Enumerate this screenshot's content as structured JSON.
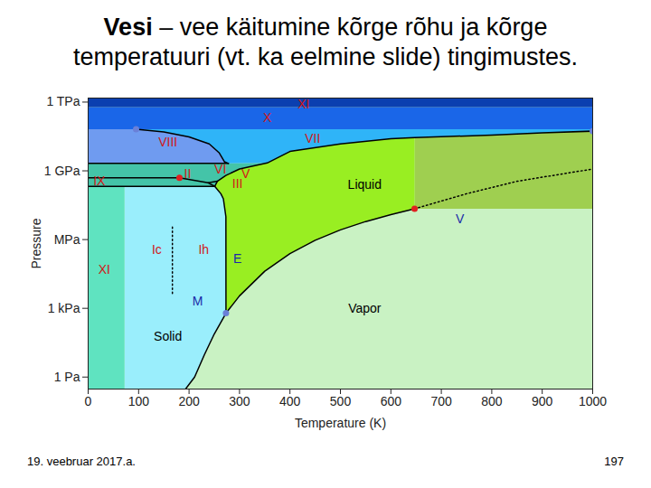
{
  "slide": {
    "title_bold": "Vesi",
    "title_lines": [
      "– vee käitumine kõrge rõhu ja kõrge",
      "temperatuuri (vt. ka eelmine slide) tingimustes."
    ],
    "date": "19. veebruar 2017.a.",
    "page": 197
  },
  "chart_data": {
    "type": "line",
    "x_label": "Temperature (K)",
    "y_label": "Pressure",
    "log": "y",
    "grid": false,
    "xlim": [
      0,
      1000
    ],
    "ylim": [
      0.3,
      1500000000000
    ],
    "xticks": [
      0,
      100,
      200,
      300,
      400,
      500,
      600,
      700,
      800,
      900,
      1000
    ],
    "yticks": [
      {
        "value": 1,
        "label": "1 Pa"
      },
      {
        "value": 1000,
        "label": "1 kPa"
      },
      {
        "value": 1000000,
        "label": "MPa"
      },
      {
        "value": 1000000000,
        "label": "1 GPa"
      },
      {
        "value": 1000000000000,
        "label": "1 TPa"
      }
    ],
    "regions": [
      {
        "color": "#c9f2c3",
        "x": [
          0,
          1000,
          1000,
          0
        ],
        "values": [
          0.3,
          0.3,
          1500000000000,
          1500000000000
        ]
      },
      {
        "color": "#9fcf50",
        "x": [
          647,
          1000,
          1000,
          900,
          800,
          700,
          647
        ],
        "values": [
          22060000,
          22060000,
          54000000000,
          45000000000,
          36000000000,
          31000000000,
          28000000000
        ]
      },
      {
        "color": "#99ee22",
        "x": [
          273.16,
          300,
          350,
          400,
          450,
          500,
          550,
          600,
          647,
          647,
          600,
          500,
          400,
          355,
          300,
          273,
          256,
          251,
          263,
          268,
          273,
          273.16
        ],
        "values": [
          611.7,
          3500,
          41700,
          245600,
          932000,
          2640000,
          6120000,
          12340000,
          22060000,
          28000000000,
          25000000000,
          15000000000,
          7000000000,
          2200000000,
          1200000000,
          630000000,
          350000000,
          210000000,
          100000000,
          60000000,
          10000000,
          611.7
        ]
      },
      {
        "color": "#9aeefc",
        "x": [
          72,
          193,
          211,
          230,
          250,
          273.16,
          273,
          268,
          263,
          251,
          72
        ],
        "values": [
          0.3,
          0.3,
          1,
          9,
          76,
          611.7,
          10000000,
          60000000,
          100000000,
          210000000,
          210000000
        ]
      },
      {
        "color": "#5fe3c0",
        "x": [
          0,
          72,
          72,
          0
        ],
        "values": [
          0.3,
          0.3,
          210000000,
          210000000
        ]
      },
      {
        "color": "#44c4a8",
        "x": [
          0,
          251,
          256,
          273,
          300,
          355,
          278,
          0
        ],
        "values": [
          210000000,
          210000000,
          350000000,
          630000000,
          1200000000,
          2200000000,
          2100000000,
          2100000000
        ]
      },
      {
        "color": "#6f9bf0",
        "x": [
          0,
          278,
          270,
          260,
          240,
          200,
          150,
          95,
          0
        ],
        "values": [
          2100000000,
          2100000000,
          2500000000,
          6000000000,
          15000000000,
          30000000000,
          50000000000,
          65000000000,
          65000000000
        ]
      },
      {
        "color": "#2fb4f8",
        "x": [
          278,
          355,
          400,
          500,
          600,
          647,
          700,
          800,
          900,
          1000,
          1000,
          95,
          150,
          200,
          240,
          260,
          270
        ],
        "values": [
          2100000000,
          2200000000,
          7000000000,
          15000000000,
          25000000000,
          28000000000,
          31000000000,
          36000000000,
          45000000000,
          54000000000,
          65000000000,
          65000000000,
          50000000000,
          30000000000,
          15000000000,
          6000000000,
          2500000000
        ]
      },
      {
        "color": "#1a66e8",
        "x": [
          0,
          1000,
          1000,
          0
        ],
        "values": [
          65000000000,
          65000000000,
          600000000000,
          600000000000
        ]
      },
      {
        "color": "#0b3fb0",
        "x": [
          0,
          1000,
          1000,
          0
        ],
        "values": [
          600000000000,
          600000000000,
          1500000000000,
          1500000000000
        ]
      }
    ],
    "series": [
      {
        "color": "#000000",
        "line_style": "solid",
        "x": [
          193,
          211,
          230,
          250,
          273.16
        ],
        "values": [
          0.3,
          1,
          9,
          76,
          611.7
        ]
      },
      {
        "color": "#000000",
        "line_style": "solid",
        "x": [
          273.16,
          300,
          350,
          400,
          450,
          500,
          550,
          600,
          647
        ],
        "values": [
          611.7,
          3500,
          41700,
          245600,
          932000,
          2640000,
          6120000,
          12340000,
          22060000
        ]
      },
      {
        "color": "#000000",
        "line_style": "solid",
        "x": [
          273.16,
          273,
          268,
          263,
          251,
          256,
          273,
          300,
          355,
          400,
          500,
          600,
          647,
          700,
          800,
          900,
          1000
        ],
        "values": [
          611.7,
          10000000,
          60000000,
          100000000,
          210000000,
          350000000,
          630000000,
          1200000000,
          2200000000,
          7000000000,
          15000000000,
          25000000000,
          28000000000,
          31000000000,
          36000000000,
          45000000000,
          54000000000
        ]
      },
      {
        "color": "#000000",
        "line_style": "solid",
        "x": [
          95,
          150,
          200,
          240,
          260,
          270,
          278
        ],
        "values": [
          65000000000,
          50000000000,
          30000000000,
          15000000000,
          6000000000,
          2500000000,
          2100000000
        ]
      },
      {
        "color": "#000000",
        "line_style": "solid",
        "x": [
          0,
          278
        ],
        "values": [
          2100000000,
          2100000000
        ]
      },
      {
        "color": "#000000",
        "line_style": "solid",
        "x": [
          0,
          251
        ],
        "values": [
          210000000,
          210000000
        ]
      },
      {
        "color": "#000000",
        "line_style": "solid",
        "x": [
          0,
          181,
          238,
          256
        ],
        "values": [
          500000000,
          500000000,
          300000000,
          350000000
        ]
      },
      {
        "color": "#000000",
        "line_style": "solid",
        "x": [
          238,
          251
        ],
        "values": [
          300000000,
          210000000
        ]
      },
      {
        "color": "#000000",
        "line_style": "dotted",
        "x": [
          647,
          750,
          850,
          1000
        ],
        "values": [
          22060000,
          100000000,
          350000000,
          1200000000
        ]
      },
      {
        "color": "#000000",
        "line_style": "dotted",
        "x": [
          167,
          167
        ],
        "values": [
          4400,
          4400000
        ]
      }
    ],
    "points": {
      "marker": "circle",
      "x": [
        647,
        181,
        273.16,
        95,
        1000
      ],
      "values": [
        22060000,
        500000000,
        611.7,
        65000000000,
        54000000000
      ],
      "colors": [
        "#e02020",
        "#e02020",
        "#6a80d8",
        "#6a80d8",
        "#6a80d8"
      ]
    },
    "annotations": [
      {
        "text": "XI",
        "x": 427,
        "y": 800000000000,
        "color": "#d01818"
      },
      {
        "text": "X",
        "x": 355,
        "y": 200000000000,
        "color": "#d01818"
      },
      {
        "text": "VII",
        "x": 445,
        "y": 25000000000,
        "color": "#d01818"
      },
      {
        "text": "VIII",
        "x": 158,
        "y": 18000000000,
        "color": "#d01818"
      },
      {
        "text": "VI",
        "x": 262,
        "y": 1100000000,
        "color": "#d01818"
      },
      {
        "text": "V",
        "x": 312,
        "y": 700000000,
        "color": "#d01818"
      },
      {
        "text": "III",
        "x": 296,
        "y": 260000000,
        "color": "#d01818"
      },
      {
        "text": "II",
        "x": 197,
        "y": 750000000,
        "color": "#d01818"
      },
      {
        "text": "IX",
        "x": 22,
        "y": 350000000,
        "color": "#d01818"
      },
      {
        "text": "Liquid",
        "x": 548,
        "y": 250000000,
        "color": "#000000"
      },
      {
        "text": "Vapor",
        "x": 548,
        "y": 1000,
        "color": "#000000"
      },
      {
        "text": "Solid",
        "x": 158,
        "y": 60,
        "color": "#000000"
      },
      {
        "text": "Ic",
        "x": 136,
        "y": 370000,
        "color": "#d01818"
      },
      {
        "text": "Ih",
        "x": 229,
        "y": 370000,
        "color": "#d01818"
      },
      {
        "text": "XI",
        "x": 32,
        "y": 48000,
        "color": "#d01818"
      },
      {
        "text": "E",
        "x": 296,
        "y": 140000,
        "color": "#1a2aa8"
      },
      {
        "text": "M",
        "x": 217,
        "y": 2000,
        "color": "#1a2aa8"
      },
      {
        "text": "V",
        "x": 737,
        "y": 8000000,
        "color": "#1a2aa8"
      }
    ]
  }
}
